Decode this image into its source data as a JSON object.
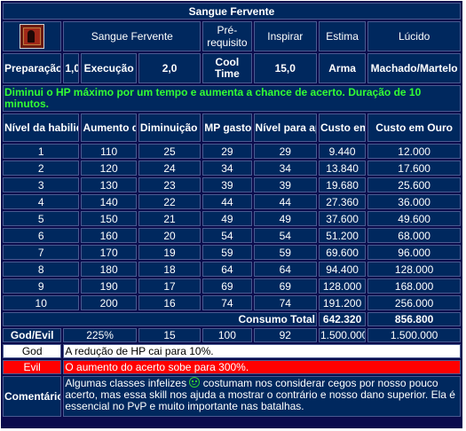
{
  "title": "Sangue Fervente",
  "header": {
    "icon": "blood-rage-skill-icon",
    "name": "Sangue Fervente",
    "prereq_label": "Pré-requisito",
    "inspire_label": "Inspirar",
    "estima_label": "Estima",
    "lucido_label": "Lúcido"
  },
  "stats": {
    "preparacao_label": "Preparação",
    "preparacao_value": "1,0",
    "execucao_label": "Execução",
    "execucao_value": "2,0",
    "cooltime_label": "Cool Time",
    "cooltime_value": "15,0",
    "weapon1": "Arma",
    "weapon2": "Machado/Martelo"
  },
  "description": "Diminui o HP máximo por um tempo e aumenta a chance de acerto. Duração de 10 minutos.",
  "columns": [
    "Nível da habilidade",
    "Aumento do acerto(%)",
    "Diminuição do HP(%)",
    "MP gasto",
    "Nível para aprender",
    "Custo em Alma",
    "Custo em Ouro"
  ],
  "rows": [
    [
      "1",
      "110",
      "25",
      "29",
      "29",
      "9.440",
      "12.000"
    ],
    [
      "2",
      "120",
      "24",
      "34",
      "34",
      "13.840",
      "17.600"
    ],
    [
      "3",
      "130",
      "23",
      "39",
      "39",
      "19.680",
      "25.600"
    ],
    [
      "4",
      "140",
      "22",
      "44",
      "44",
      "27.360",
      "36.000"
    ],
    [
      "5",
      "150",
      "21",
      "49",
      "49",
      "37.600",
      "49.600"
    ],
    [
      "6",
      "160",
      "20",
      "54",
      "54",
      "51.200",
      "68.000"
    ],
    [
      "7",
      "170",
      "19",
      "59",
      "59",
      "69.600",
      "96.000"
    ],
    [
      "8",
      "180",
      "18",
      "64",
      "64",
      "94.400",
      "128.000"
    ],
    [
      "9",
      "190",
      "17",
      "69",
      "69",
      "128.000",
      "168.000"
    ],
    [
      "10",
      "200",
      "16",
      "74",
      "74",
      "191.200",
      "256.000"
    ]
  ],
  "totals": {
    "label": "Consumo Total",
    "alma": "642.320",
    "ouro": "856.800"
  },
  "godevil": {
    "label": "God/Evil",
    "v1": "225%",
    "v2": "15",
    "v3": "100",
    "v4": "92",
    "v5": "1.500.000",
    "v6": "1.500.000"
  },
  "god": {
    "label": "God",
    "text": "A redução de HP cai para 10%."
  },
  "evil": {
    "label": "Evil",
    "text": "O aumento do acerto sobe para 300%."
  },
  "comment": {
    "label": "Comentário",
    "text_before": "Algumas classes infelizes",
    "smiley": "smiley-icon",
    "text_after": "costumam nos considerar cegos por nosso pouco acerto, mas essa skill nos ajuda a mostrar o contrário e nosso dano superior. Ela é essencial no PvP e muito importante nas batalhas."
  }
}
